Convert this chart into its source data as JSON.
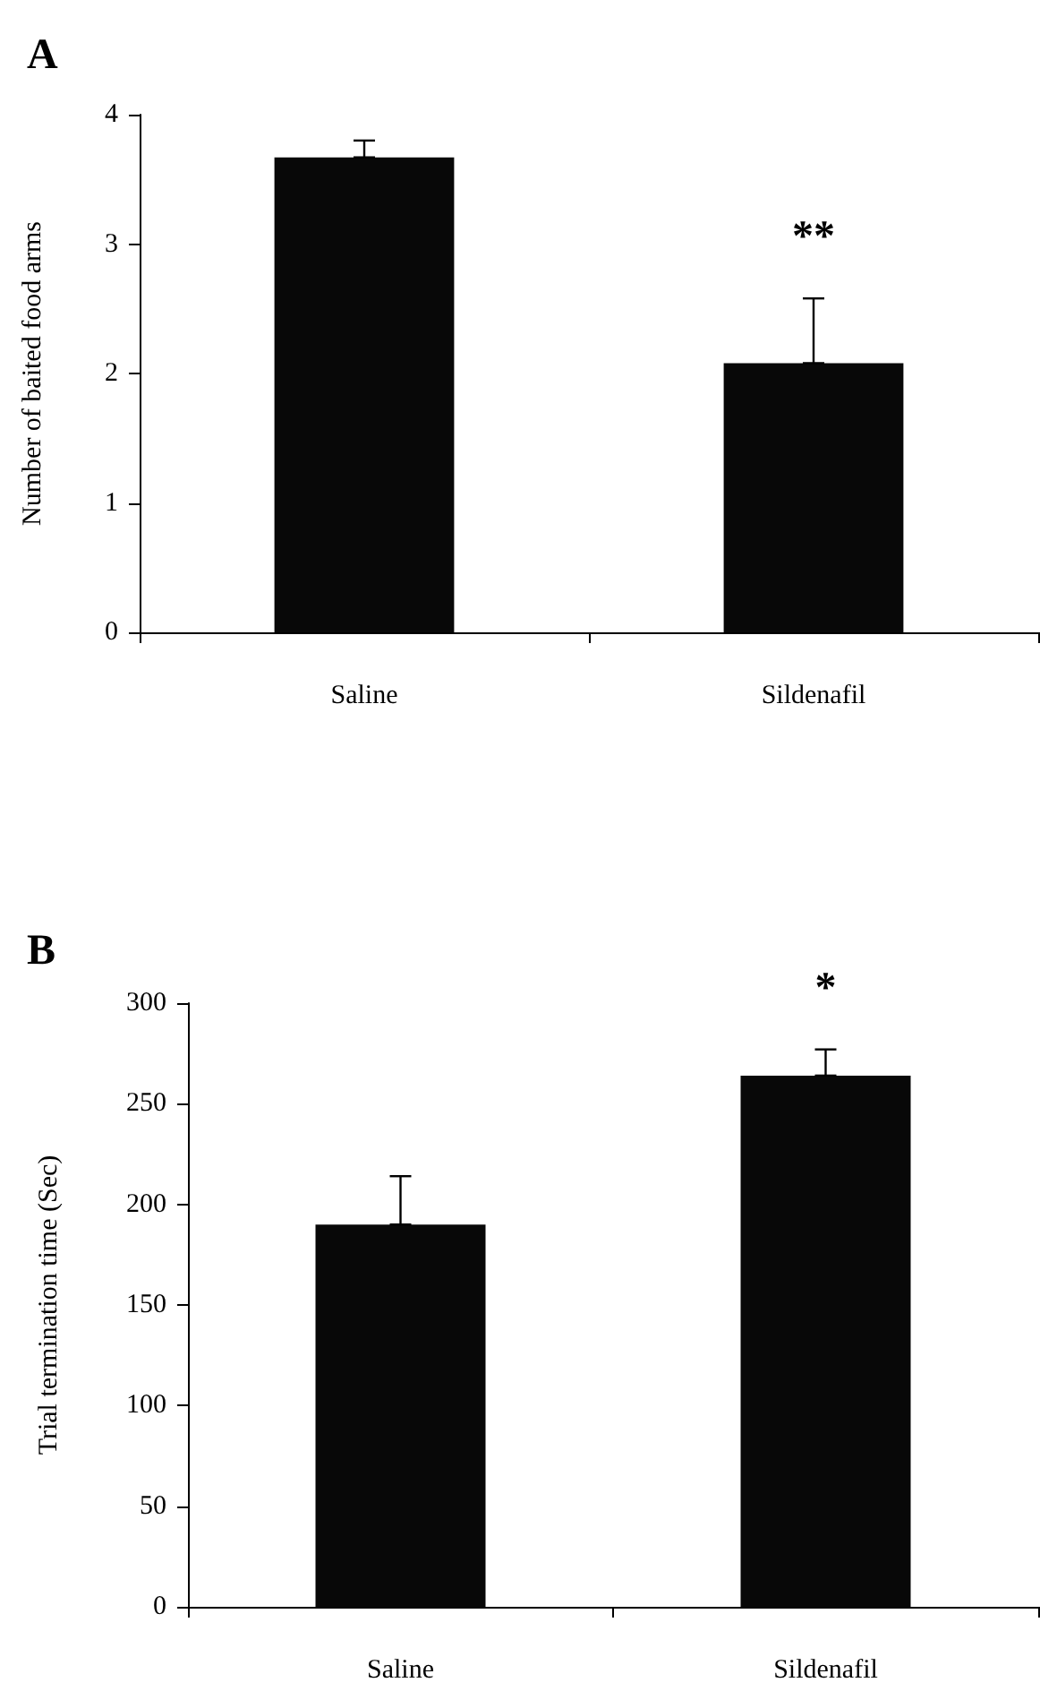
{
  "chart_data": [
    {
      "type": "bar",
      "title": "A",
      "ylabel": "Number of baited food arms",
      "categories": [
        "Saline",
        "Sildenafil"
      ],
      "series": [
        {
          "color": "#080808",
          "values": [
            3.67,
            2.08
          ],
          "errors": [
            [
              3.67,
              3.8
            ],
            [
              2.08,
              2.58
            ]
          ]
        }
      ],
      "ylim": [
        0,
        4
      ],
      "yticks": [
        0,
        1,
        2,
        3,
        4
      ],
      "grid": false,
      "annotations": [
        "**"
      ]
    },
    {
      "type": "bar",
      "title": "B",
      "ylabel": "Trial termination time (Sec)",
      "categories": [
        "Saline",
        "Sildenafil"
      ],
      "series": [
        {
          "color": "#080808",
          "values": [
            190,
            264
          ],
          "errors": [
            [
              190,
              214
            ],
            [
              264,
              277
            ]
          ]
        }
      ],
      "ylim": [
        0,
        300
      ],
      "yticks": [
        0,
        50,
        100,
        150,
        200,
        250,
        300
      ],
      "grid": false,
      "annotations": [
        "*"
      ]
    }
  ]
}
